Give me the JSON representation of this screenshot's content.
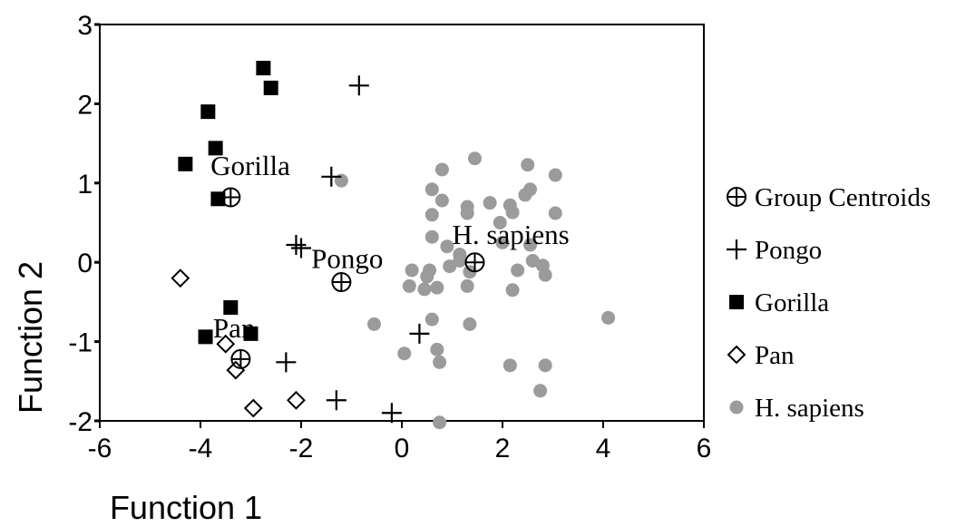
{
  "chart_data": {
    "type": "scatter",
    "xlabel": "Function 1",
    "ylabel": "Function 2",
    "xlim": [
      -6,
      6
    ],
    "ylim": [
      -2,
      3
    ],
    "xticks": [
      "-6",
      "-4",
      "-2",
      "0",
      "2",
      "4",
      "6"
    ],
    "yticks": [
      "-2",
      "-1",
      "0",
      "1",
      "2",
      "3"
    ],
    "legend_position": "right",
    "series": [
      {
        "name": "Group Centroids",
        "marker": "circle-plus",
        "color": "#000000",
        "points": [
          [
            -3.4,
            0.82
          ],
          [
            -1.2,
            -0.25
          ],
          [
            1.45,
            0.0
          ],
          [
            -3.2,
            -1.22
          ]
        ]
      },
      {
        "name": "Pongo",
        "marker": "plus",
        "color": "#000000",
        "points": [
          [
            -0.85,
            2.23
          ],
          [
            -1.4,
            1.08
          ],
          [
            -2.1,
            0.22
          ],
          [
            -2.0,
            0.18
          ],
          [
            0.35,
            -0.9
          ],
          [
            -2.3,
            -1.26
          ],
          [
            -1.3,
            -1.74
          ],
          [
            -0.2,
            -1.9
          ]
        ]
      },
      {
        "name": "Gorilla",
        "marker": "square",
        "color": "#000000",
        "points": [
          [
            -2.75,
            2.45
          ],
          [
            -2.6,
            2.2
          ],
          [
            -3.85,
            1.9
          ],
          [
            -3.7,
            1.44
          ],
          [
            -4.3,
            1.24
          ],
          [
            -3.65,
            0.8
          ],
          [
            -3.4,
            -0.57
          ],
          [
            -3.0,
            -0.9
          ],
          [
            -3.9,
            -0.94
          ]
        ]
      },
      {
        "name": "Pan",
        "marker": "diamond",
        "color": "#000000",
        "points": [
          [
            -4.4,
            -0.2
          ],
          [
            -3.5,
            -1.03
          ],
          [
            -3.3,
            -1.36
          ],
          [
            -2.95,
            -1.84
          ],
          [
            -2.1,
            -1.74
          ]
        ]
      },
      {
        "name": "H. sapiens",
        "marker": "circle",
        "color": "#9b9b9b",
        "points": [
          [
            -1.2,
            1.03
          ],
          [
            0.8,
            1.17
          ],
          [
            1.45,
            1.31
          ],
          [
            2.5,
            1.23
          ],
          [
            3.05,
            1.1
          ],
          [
            0.6,
            0.92
          ],
          [
            0.8,
            0.78
          ],
          [
            1.3,
            0.7
          ],
          [
            1.75,
            0.75
          ],
          [
            2.15,
            0.72
          ],
          [
            2.45,
            0.85
          ],
          [
            2.55,
            0.92
          ],
          [
            1.3,
            0.62
          ],
          [
            2.2,
            0.63
          ],
          [
            3.05,
            0.62
          ],
          [
            0.6,
            0.6
          ],
          [
            1.95,
            0.5
          ],
          [
            0.6,
            0.32
          ],
          [
            0.9,
            0.2
          ],
          [
            1.15,
            0.1
          ],
          [
            2.0,
            0.25
          ],
          [
            2.55,
            0.22
          ],
          [
            0.2,
            -0.1
          ],
          [
            0.5,
            -0.18
          ],
          [
            0.55,
            -0.1
          ],
          [
            0.95,
            -0.05
          ],
          [
            1.15,
            0.02
          ],
          [
            1.35,
            -0.12
          ],
          [
            2.3,
            -0.1
          ],
          [
            2.6,
            0.02
          ],
          [
            2.8,
            -0.04
          ],
          [
            2.85,
            -0.16
          ],
          [
            0.15,
            -0.3
          ],
          [
            0.45,
            -0.34
          ],
          [
            0.7,
            -0.32
          ],
          [
            1.3,
            -0.3
          ],
          [
            2.2,
            -0.35
          ],
          [
            -0.55,
            -0.78
          ],
          [
            0.6,
            -0.72
          ],
          [
            1.35,
            -0.78
          ],
          [
            4.1,
            -0.7
          ],
          [
            0.05,
            -1.15
          ],
          [
            0.7,
            -1.1
          ],
          [
            0.75,
            -1.26
          ],
          [
            2.15,
            -1.3
          ],
          [
            2.85,
            -1.3
          ],
          [
            2.75,
            -1.62
          ],
          [
            0.75,
            -2.02
          ]
        ]
      }
    ],
    "annotations": [
      {
        "text": "Gorilla",
        "x": -3.8,
        "y": 1.1
      },
      {
        "text": "Pongo",
        "x": -1.8,
        "y": -0.07
      },
      {
        "text": "H. sapiens",
        "x": 1.0,
        "y": 0.23
      },
      {
        "text": "Pan",
        "x": -3.75,
        "y": -0.95
      }
    ]
  }
}
